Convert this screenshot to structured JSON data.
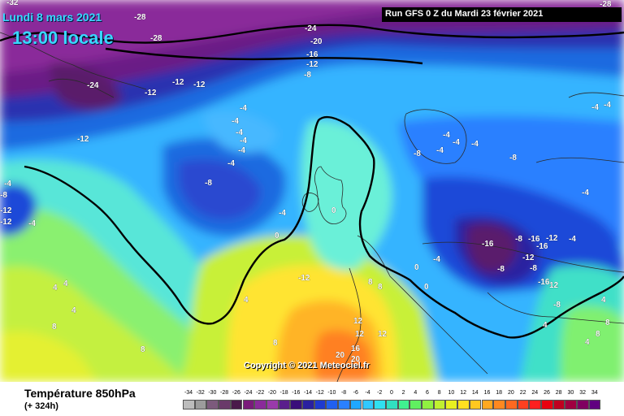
{
  "header": {
    "date_line": "Lundi 8 mars 2021",
    "time_line": "13:00 locale",
    "run_info": "Run GFS 0 Z du Mardi 23 février 2021"
  },
  "copyright": "Copyright © 2021 Meteociel.fr",
  "footer": {
    "parameter": "Température 850hPa",
    "lead_time": "(+ 324h)"
  },
  "legend": {
    "ticks": [
      "-34",
      "-32",
      "-30",
      "-28",
      "-26",
      "-24",
      "-22",
      "-20",
      "-18",
      "-16",
      "-14",
      "-12",
      "-10",
      "-8",
      "-6",
      "-4",
      "-2",
      "0",
      "2",
      "4",
      "6",
      "8",
      "10",
      "12",
      "14",
      "16",
      "18",
      "20",
      "22",
      "24",
      "26",
      "28",
      "30",
      "32",
      "34"
    ],
    "colors": [
      "#bcbcbc",
      "#9c9c9c",
      "#7c5a7c",
      "#6a3a6a",
      "#4a1a4a",
      "#7a1a7a",
      "#8a2a9a",
      "#9a3aaa",
      "#5a1e8c",
      "#3a0e7a",
      "#2a20a0",
      "#1e3ad0",
      "#2060f0",
      "#2a80ff",
      "#20a8ff",
      "#30c8ff",
      "#30e0f0",
      "#30e0c0",
      "#40f090",
      "#60f060",
      "#90f040",
      "#c0f030",
      "#e8f020",
      "#ffe020",
      "#ffc820",
      "#ffa820",
      "#ff8820",
      "#ff6820",
      "#ff4020",
      "#ff2020",
      "#e80010",
      "#c00020",
      "#a00040",
      "#800060",
      "#600080"
    ]
  },
  "map_labels": [
    {
      "text": "-28"
    },
    {
      "text": "-28"
    },
    {
      "text": "-24"
    },
    {
      "text": "-20"
    },
    {
      "text": "-16"
    },
    {
      "text": "-12"
    },
    {
      "text": "-8"
    },
    {
      "text": "-24"
    },
    {
      "text": "-12"
    },
    {
      "text": "-12"
    },
    {
      "text": "-12"
    },
    {
      "text": "-12"
    },
    {
      "text": "-4"
    },
    {
      "text": "-4"
    },
    {
      "text": "-4"
    },
    {
      "text": "-4"
    },
    {
      "text": "-4"
    },
    {
      "text": "-4"
    },
    {
      "text": "-8"
    },
    {
      "text": "-4"
    },
    {
      "text": "0"
    },
    {
      "text": "0"
    },
    {
      "text": "-8"
    },
    {
      "text": "-4"
    },
    {
      "text": "-4"
    },
    {
      "text": "-4"
    },
    {
      "text": "-4"
    },
    {
      "text": "-8"
    },
    {
      "text": "-4"
    },
    {
      "text": "-4"
    },
    {
      "text": "-16"
    },
    {
      "text": "-8"
    },
    {
      "text": "-16"
    },
    {
      "text": "-16"
    },
    {
      "text": "-12"
    },
    {
      "text": "-12"
    },
    {
      "text": "-16"
    },
    {
      "text": "12"
    },
    {
      "text": "-8"
    },
    {
      "text": "-4"
    },
    {
      "text": "-8"
    },
    {
      "text": "-12"
    },
    {
      "text": "-12"
    },
    {
      "text": "-12"
    },
    {
      "text": "4"
    },
    {
      "text": "4"
    },
    {
      "text": "4"
    },
    {
      "text": "4"
    },
    {
      "text": "8"
    },
    {
      "text": "8"
    },
    {
      "text": "8"
    },
    {
      "text": "8"
    },
    {
      "text": "8"
    },
    {
      "text": "12"
    },
    {
      "text": "12"
    },
    {
      "text": "12"
    },
    {
      "text": "16"
    },
    {
      "text": "20"
    },
    {
      "text": "20"
    },
    {
      "text": "4"
    },
    {
      "text": "4"
    },
    {
      "text": "4"
    },
    {
      "text": "8"
    },
    {
      "text": "8"
    },
    {
      "text": "0"
    },
    {
      "text": "0"
    },
    {
      "text": "-4"
    },
    {
      "text": "-4"
    },
    {
      "text": "-8"
    },
    {
      "text": "-8"
    },
    {
      "text": "-4"
    },
    {
      "text": "-4"
    },
    {
      "text": "-32"
    },
    {
      "text": "-28"
    }
  ]
}
